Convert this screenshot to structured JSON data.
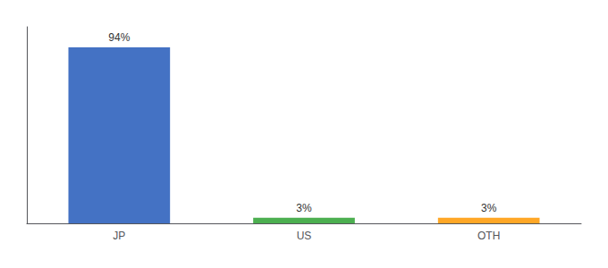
{
  "chart_data": {
    "type": "bar",
    "categories": [
      "JP",
      "US",
      "OTH"
    ],
    "values": [
      94,
      3,
      3
    ],
    "value_labels": [
      "94%",
      "3%",
      "3%"
    ],
    "colors": [
      "#4472c4",
      "#4caf50",
      "#ffa726"
    ],
    "ylim": [
      0,
      105
    ],
    "data_labels": true,
    "tick_labels": "x",
    "grid": false
  }
}
